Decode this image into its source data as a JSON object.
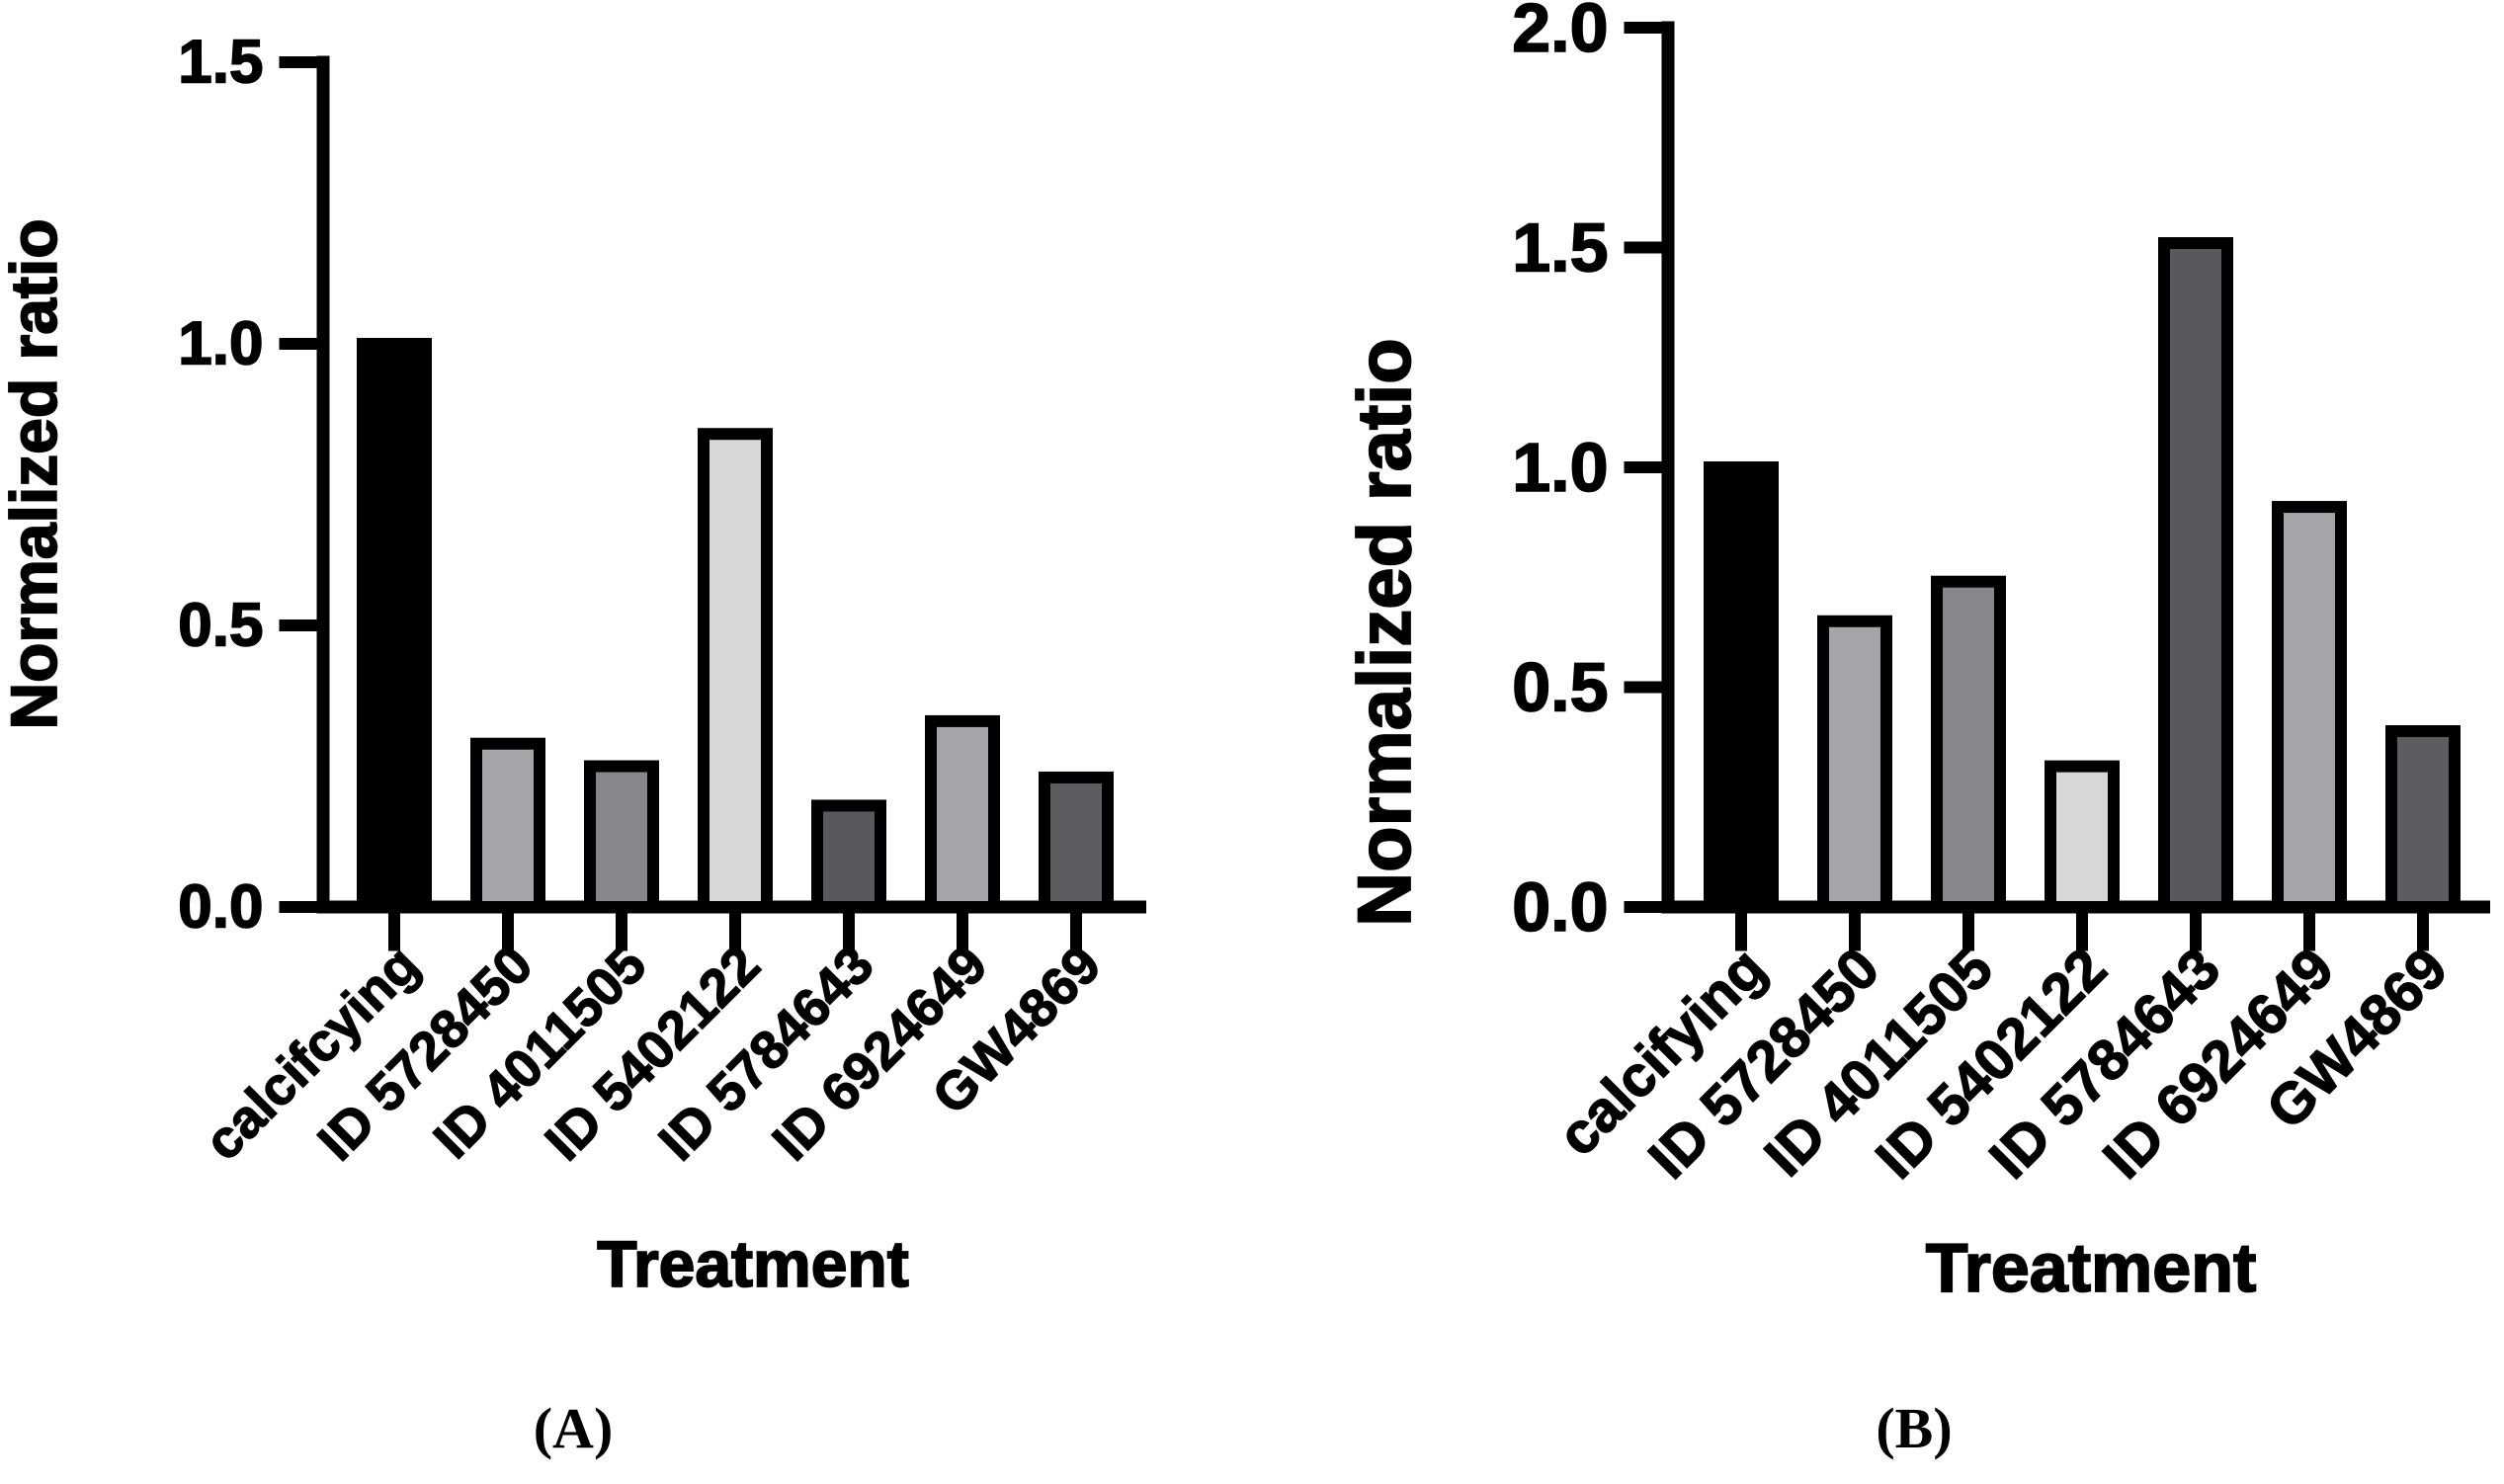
{
  "figure": {
    "background": "#ffffff",
    "axis_color": "#000000",
    "bar_outline_color": "#000000"
  },
  "chart_data": [
    {
      "panel": "A",
      "type": "bar",
      "title": "",
      "ylabel": "Normalized ratio",
      "xlabel": "Treatment",
      "caption": "(A)",
      "categories": [
        "calcifcying",
        "ID 5728450",
        "ID 4011505",
        "ID 5402122",
        "ID 5784643",
        "ID 6924649",
        "GW4869"
      ],
      "values": [
        1.0,
        0.29,
        0.25,
        0.84,
        0.18,
        0.33,
        0.23
      ],
      "bar_colors": [
        "#000000",
        "#a4a4a9",
        "#87878b",
        "#d7d7d9",
        "#59595d",
        "#a4a4a9",
        "#5d5d61"
      ],
      "ylim": [
        0,
        1.5
      ],
      "yticks": [
        0.0,
        0.5,
        1.0,
        1.5
      ],
      "ytick_labels": [
        "0.0",
        "0.5",
        "1.0",
        "1.5"
      ],
      "grid": false,
      "legend": null,
      "x_label_rotation_deg": -45
    },
    {
      "panel": "B",
      "type": "bar",
      "title": "",
      "ylabel": "Normalized ratio",
      "xlabel": "Treatment",
      "caption": "(B)",
      "categories": [
        "calcifying",
        "ID 5728450",
        "ID 4011505",
        "ID 5402122",
        "ID 5784643",
        "ID 6924649",
        "GW4869"
      ],
      "values": [
        1.0,
        0.65,
        0.74,
        0.32,
        1.51,
        0.91,
        0.4
      ],
      "bar_colors": [
        "#000000",
        "#a4a4a9",
        "#87878b",
        "#d7d7d9",
        "#59595d",
        "#a4a4a9",
        "#5d5d61"
      ],
      "ylim": [
        0,
        2.0
      ],
      "yticks": [
        0.0,
        0.5,
        1.0,
        1.5,
        2.0
      ],
      "ytick_labels": [
        "0.0",
        "0.5",
        "1.0",
        "1.5",
        "2.0"
      ],
      "grid": false,
      "legend": null,
      "x_label_rotation_deg": -45
    }
  ]
}
